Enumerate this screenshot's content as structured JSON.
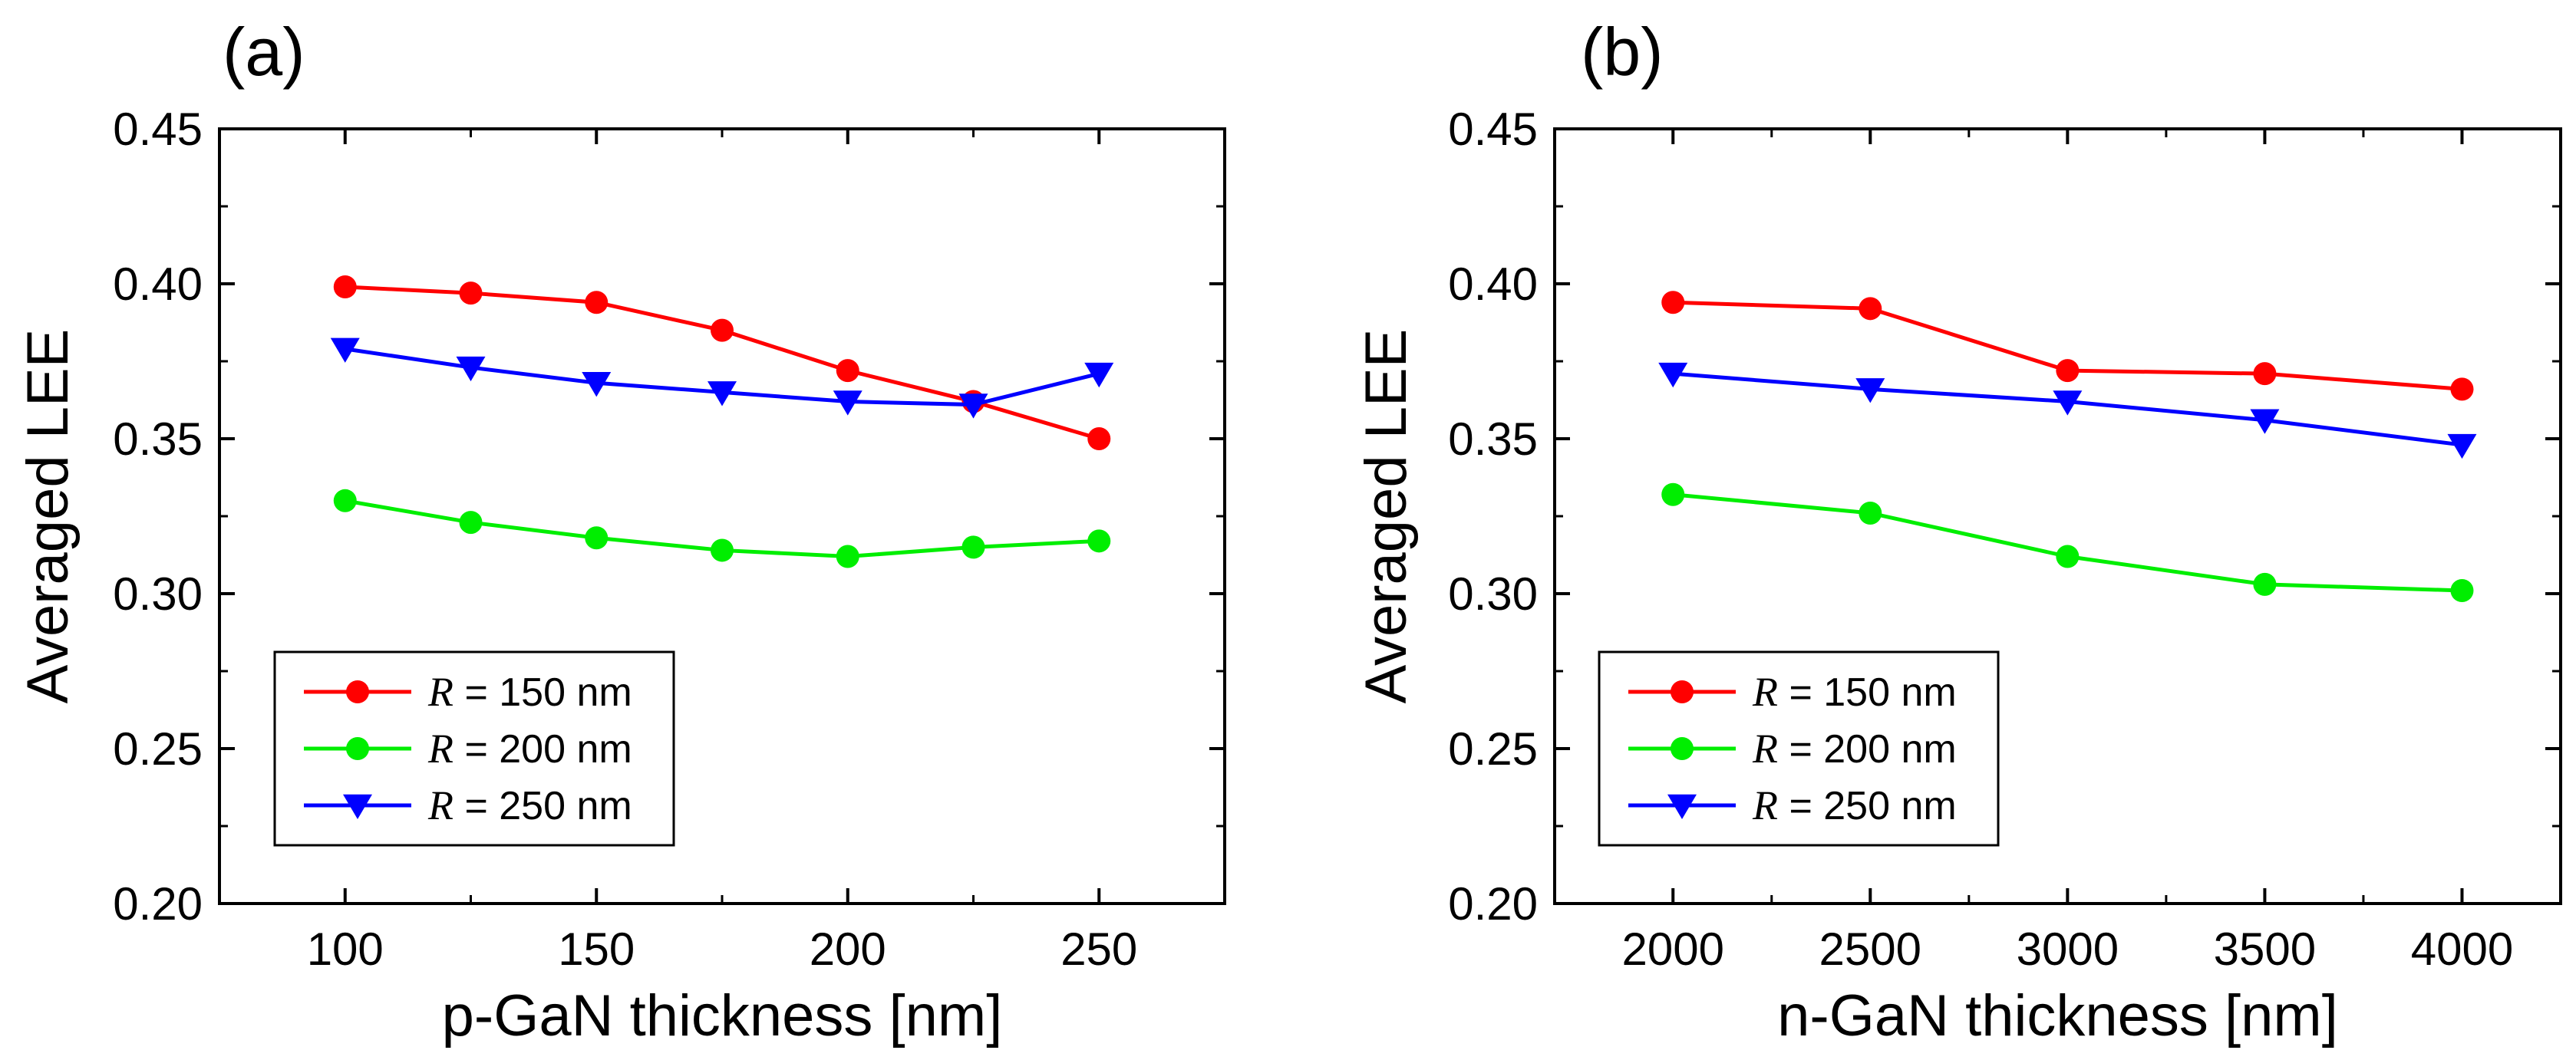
{
  "chart_data": [
    {
      "type": "line",
      "panel_label": "(a)",
      "xlabel": "p-GaN thickness [nm]",
      "ylabel": "Averaged LEE",
      "xlim": [
        75,
        275
      ],
      "ylim": [
        0.2,
        0.45
      ],
      "x": [
        100,
        125,
        150,
        175,
        200,
        225,
        250
      ],
      "x_ticks": [
        "100",
        "150",
        "200",
        "250"
      ],
      "x_tick_values": [
        100,
        150,
        200,
        250
      ],
      "x_minor_ticks": [
        125,
        175,
        225
      ],
      "y_ticks": [
        "0.20",
        "0.25",
        "0.30",
        "0.35",
        "0.40",
        "0.45"
      ],
      "y_tick_values": [
        0.2,
        0.25,
        0.3,
        0.35,
        0.4,
        0.45
      ],
      "legend_position": "lower-left",
      "series": [
        {
          "var": "R",
          "text": " = 150 nm",
          "color": "#ff0000",
          "marker": "circle",
          "values": [
            0.399,
            0.397,
            0.394,
            0.385,
            0.372,
            0.362,
            0.35
          ]
        },
        {
          "var": "R",
          "text": " = 200 nm",
          "color": "#00ee00",
          "marker": "circle",
          "values": [
            0.33,
            0.323,
            0.318,
            0.314,
            0.312,
            0.315,
            0.317
          ]
        },
        {
          "var": "R",
          "text": " = 250 nm",
          "color": "#0000ff",
          "marker": "triangle-down",
          "values": [
            0.379,
            0.373,
            0.368,
            0.365,
            0.362,
            0.361,
            0.371
          ]
        }
      ]
    },
    {
      "type": "line",
      "panel_label": "(b)",
      "xlabel": "n-GaN thickness [nm]",
      "ylabel": "Averaged LEE",
      "xlim": [
        1700,
        4250
      ],
      "ylim": [
        0.2,
        0.45
      ],
      "x": [
        2000,
        2500,
        3000,
        3500,
        4000
      ],
      "x_ticks": [
        "2000",
        "2500",
        "3000",
        "3500",
        "4000"
      ],
      "x_tick_values": [
        2000,
        2500,
        3000,
        3500,
        4000
      ],
      "x_minor_ticks": [
        2250,
        2750,
        3250,
        3750
      ],
      "y_ticks": [
        "0.20",
        "0.25",
        "0.30",
        "0.35",
        "0.40",
        "0.45"
      ],
      "y_tick_values": [
        0.2,
        0.25,
        0.3,
        0.35,
        0.4,
        0.45
      ],
      "legend_position": "lower-left",
      "series": [
        {
          "var": "R",
          "text": " = 150 nm",
          "color": "#ff0000",
          "marker": "circle",
          "values": [
            0.394,
            0.392,
            0.372,
            0.371,
            0.366
          ]
        },
        {
          "var": "R",
          "text": " = 200 nm",
          "color": "#00ee00",
          "marker": "circle",
          "values": [
            0.332,
            0.326,
            0.312,
            0.303,
            0.301
          ]
        },
        {
          "var": "R",
          "text": " = 250 nm",
          "color": "#0000ff",
          "marker": "triangle-down",
          "values": [
            0.371,
            0.366,
            0.362,
            0.356,
            0.348
          ]
        }
      ]
    }
  ]
}
